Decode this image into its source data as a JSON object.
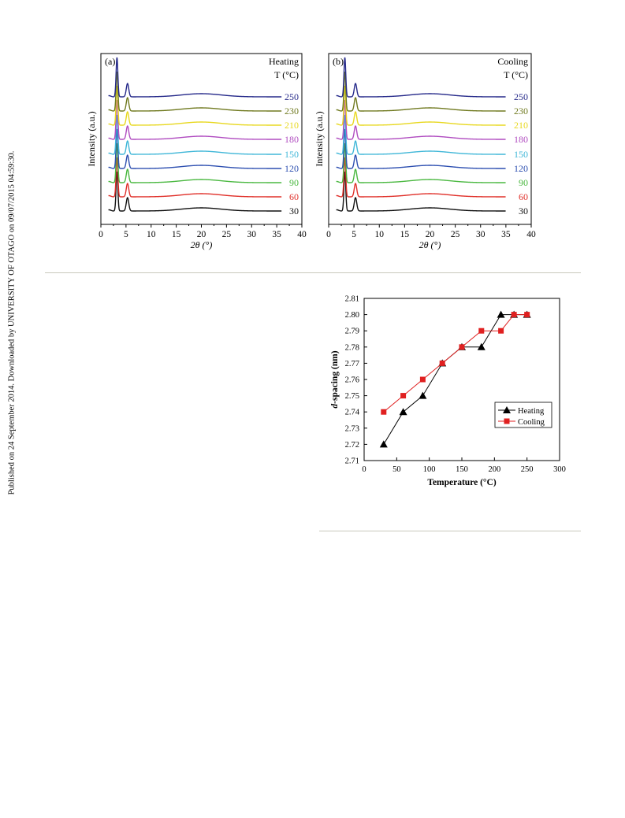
{
  "side_note": "Published on 24 September 2014. Downloaded by UNIVERSITY OF OTAGO on 09/07/2015 04:59:30.",
  "colors": {
    "30": "#111111",
    "60": "#e0302a",
    "90": "#4ab840",
    "120": "#2d4fb0",
    "150": "#40b7d8",
    "180": "#b04cc0",
    "210": "#e8d820",
    "230": "#707a20",
    "250": "#262a8a",
    "heating": "#000000",
    "cooling": "#e02020",
    "rule": "#c9c9bb"
  },
  "chart_data": [
    {
      "type": "line",
      "panel": "(a)",
      "title": "Heating",
      "legend_title": "T (°C)",
      "xlabel": "2θ (°)",
      "ylabel": "Intensity (a.u.)",
      "xlim": [
        0,
        40
      ],
      "xticks": [
        "0",
        "5",
        "10",
        "15",
        "20",
        "25",
        "30",
        "35",
        "40"
      ],
      "series": [
        {
          "name": "30",
          "color_key": "30"
        },
        {
          "name": "60",
          "color_key": "60"
        },
        {
          "name": "90",
          "color_key": "90"
        },
        {
          "name": "120",
          "color_key": "120"
        },
        {
          "name": "150",
          "color_key": "150"
        },
        {
          "name": "180",
          "color_key": "180"
        },
        {
          "name": "210",
          "color_key": "210"
        },
        {
          "name": "230",
          "color_key": "230"
        },
        {
          "name": "250",
          "color_key": "250"
        }
      ],
      "peaks": [
        {
          "x": 3.2,
          "width": 0.25
        },
        {
          "x": 5.3,
          "width": 0.35
        }
      ],
      "x_range": [
        1.5,
        36
      ]
    },
    {
      "type": "line",
      "panel": "(b)",
      "title": "Cooling",
      "legend_title": "T (°C)",
      "xlabel": "2θ (°)",
      "ylabel": "Intensity (a.u.)",
      "xlim": [
        0,
        40
      ],
      "xticks": [
        "0",
        "5",
        "10",
        "15",
        "20",
        "25",
        "30",
        "35",
        "40"
      ],
      "series": [
        {
          "name": "30",
          "color_key": "30"
        },
        {
          "name": "60",
          "color_key": "60"
        },
        {
          "name": "90",
          "color_key": "90"
        },
        {
          "name": "120",
          "color_key": "120"
        },
        {
          "name": "150",
          "color_key": "150"
        },
        {
          "name": "180",
          "color_key": "180"
        },
        {
          "name": "210",
          "color_key": "210"
        },
        {
          "name": "230",
          "color_key": "230"
        },
        {
          "name": "250",
          "color_key": "250"
        }
      ],
      "peaks": [
        {
          "x": 3.2,
          "width": 0.25
        },
        {
          "x": 5.3,
          "width": 0.35
        }
      ],
      "x_range": [
        1.5,
        35
      ]
    },
    {
      "type": "line",
      "xlabel": "Temperature (°C)",
      "ylabel": "d-spacing (nm)",
      "ylabel_italic": "d",
      "ylabel_rest": "-spacing (nm)",
      "xlim": [
        0,
        300
      ],
      "ylim": [
        2.71,
        2.81
      ],
      "xticks": [
        "0",
        "50",
        "100",
        "150",
        "200",
        "250",
        "300"
      ],
      "yticks": [
        "2.71",
        "2.72",
        "2.73",
        "2.74",
        "2.75",
        "2.76",
        "2.77",
        "2.78",
        "2.79",
        "2.80",
        "2.81"
      ],
      "legend_position": "lower-right",
      "series": [
        {
          "name": "Heating",
          "marker": "triangle",
          "color_key": "heating",
          "x": [
            30,
            60,
            90,
            120,
            150,
            180,
            210,
            230,
            250
          ],
          "y": [
            2.72,
            2.74,
            2.75,
            2.77,
            2.78,
            2.78,
            2.8,
            2.8,
            2.8
          ]
        },
        {
          "name": "Cooling",
          "marker": "square",
          "color_key": "cooling",
          "x": [
            30,
            60,
            90,
            120,
            150,
            180,
            210,
            230,
            250
          ],
          "y": [
            2.74,
            2.75,
            2.76,
            2.77,
            2.78,
            2.79,
            2.79,
            2.8,
            2.8
          ]
        }
      ]
    }
  ]
}
